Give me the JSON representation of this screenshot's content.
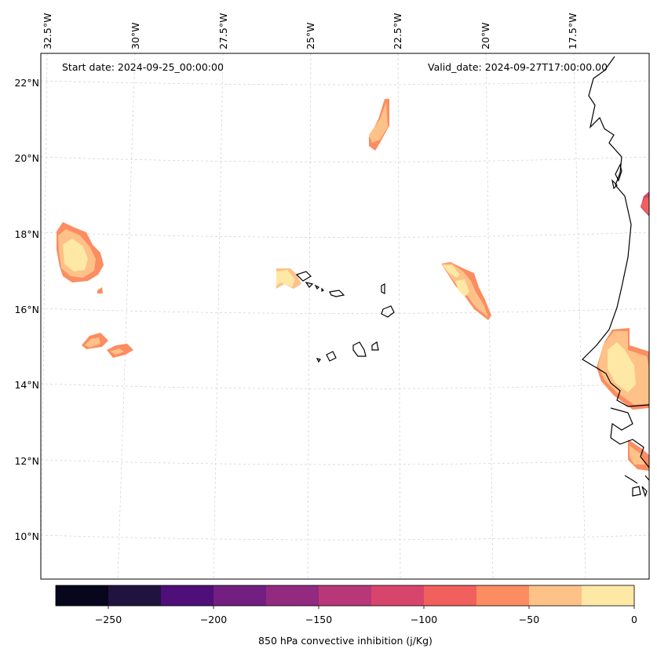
{
  "map": {
    "start_date": "Start date: 2024-09-25_00:00:00",
    "valid_date": "Valid_date: 2024-09-27T17:00:00.00",
    "lon_labels": [
      "32.5°W",
      "30°W",
      "27.5°W",
      "25°W",
      "22.5°W",
      "20°W",
      "17.5°W"
    ],
    "lat_labels": [
      "22°N",
      "20°N",
      "18°N",
      "16°N",
      "14°N",
      "12°N",
      "10°N"
    ],
    "gridlines": true
  },
  "colorbar": {
    "label": "850 hPa convective inhibition (j/Kg)",
    "ticks": [
      "−250",
      "−200",
      "−150",
      "−100",
      "−50",
      "0"
    ],
    "levels": [
      -275,
      -250,
      -225,
      -200,
      -175,
      -150,
      -125,
      -100,
      -75,
      -50,
      -25,
      0
    ],
    "colors": [
      "#07061c",
      "#211340",
      "#4e1078",
      "#721f81",
      "#922a7f",
      "#b73779",
      "#d8456c",
      "#f1605d",
      "#fc8c61",
      "#fec188",
      "#fde8a6"
    ]
  }
}
